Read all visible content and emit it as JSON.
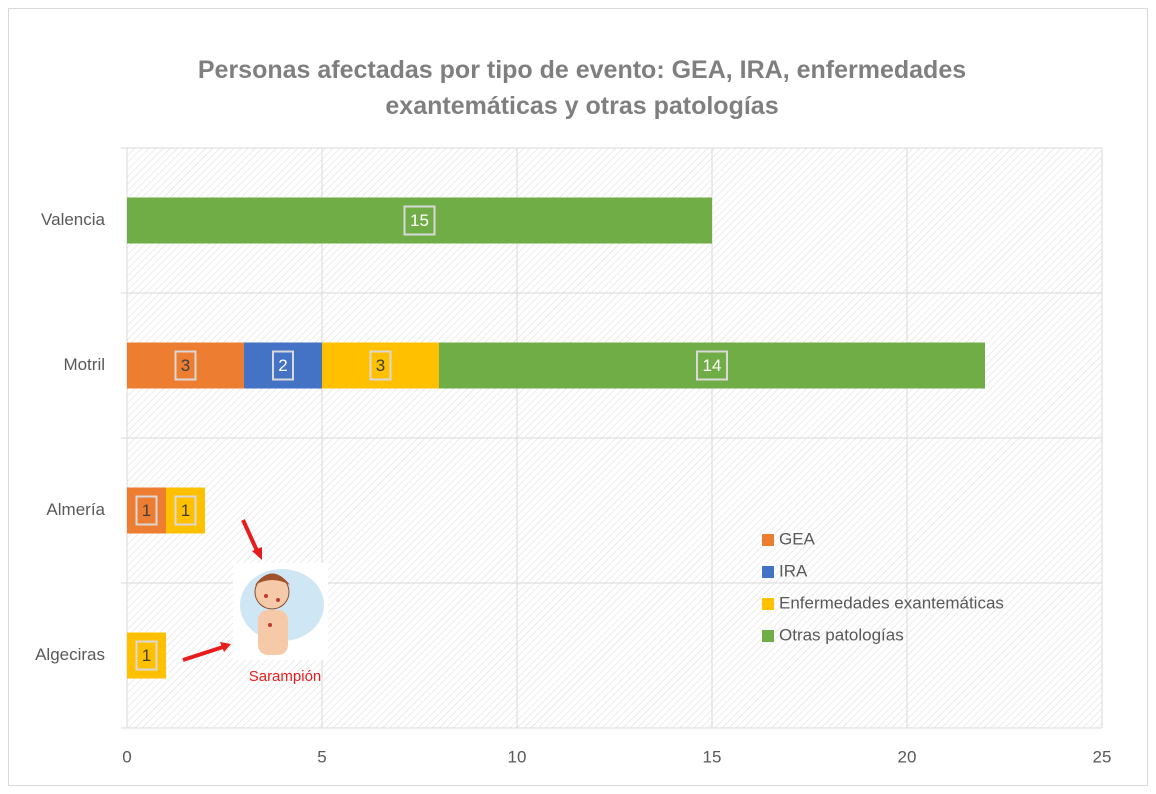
{
  "chart_data": {
    "type": "stacked-bar-horizontal",
    "title": "Personas afectadas por tipo de evento: GEA, IRA, enfermedades exantemáticas y otras patologías",
    "categories": [
      "Valencia",
      "Motril",
      "Almería",
      "Algeciras"
    ],
    "series": [
      {
        "name": "GEA",
        "color": "#ed7d31",
        "values": [
          null,
          3,
          1,
          null
        ]
      },
      {
        "name": "IRA",
        "color": "#4472c4",
        "values": [
          null,
          2,
          null,
          null
        ]
      },
      {
        "name": "Enfermedades exantemáticas",
        "color": "#ffc000",
        "values": [
          null,
          3,
          1,
          1
        ]
      },
      {
        "name": "Otras patologías",
        "color": "#70ad47",
        "values": [
          15,
          14,
          null,
          null
        ]
      }
    ],
    "xlim": [
      0,
      25
    ],
    "xticks": [
      0,
      5,
      10,
      15,
      20,
      25
    ],
    "grid": true,
    "legend": "right",
    "annotation": "Sarampión"
  }
}
